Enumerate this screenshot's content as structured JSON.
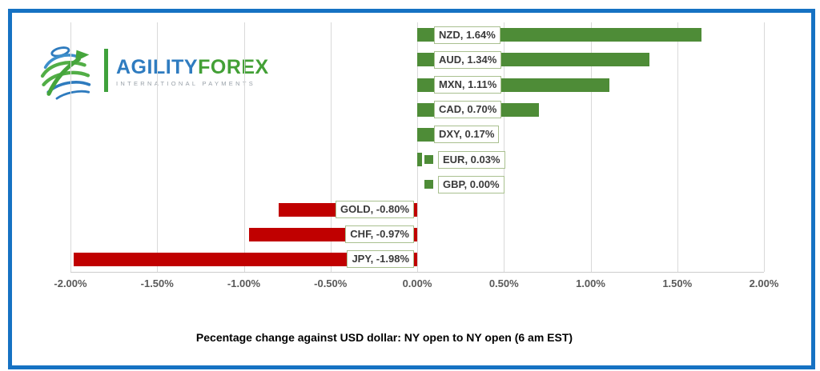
{
  "logo": {
    "brand_primary": "AGILITY",
    "brand_secondary": "FOREX",
    "tagline": "INTERNATIONAL PAYMENTS"
  },
  "chart_data": {
    "type": "bar",
    "orientation": "horizontal",
    "title": "Pecentage change against USD dollar: NY open to NY open  (6 am EST)",
    "categories": [
      "NZD",
      "AUD",
      "MXN",
      "CAD",
      "DXY",
      "EUR",
      "GBP",
      "GOLD",
      "CHF",
      "JPY"
    ],
    "values": [
      1.64,
      1.34,
      1.11,
      0.7,
      0.17,
      0.03,
      0.0,
      -0.8,
      -0.97,
      -1.98
    ],
    "data_labels": [
      "NZD, 1.64%",
      "AUD, 1.34%",
      "MXN, 1.11%",
      "CAD, 0.70%",
      "DXY, 0.17%",
      "EUR, 0.03%",
      "GBP, 0.00%",
      "GOLD, -0.80%",
      "CHF, -0.97%",
      "JPY, -1.98%"
    ],
    "x_ticks": [
      "-2.00%",
      "-1.50%",
      "-1.00%",
      "-0.50%",
      "0.00%",
      "0.50%",
      "1.00%",
      "1.50%",
      "2.00%"
    ],
    "xlim": [
      -2.0,
      2.0
    ],
    "grid": true,
    "legend_position": "none",
    "colors": {
      "positive_bar": "#4E8C37",
      "negative_bar": "#C00000",
      "label_box_border": "#A9C08F",
      "gridline": "#D9D9D9",
      "tick_text": "#595959",
      "frame_border": "#1672C3"
    }
  }
}
